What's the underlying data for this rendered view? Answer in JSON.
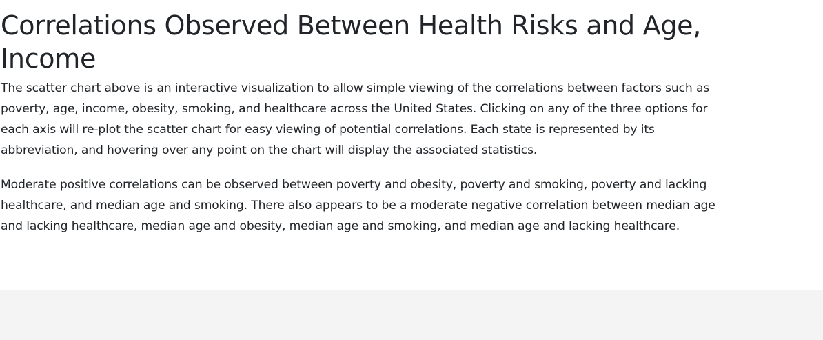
{
  "article": {
    "title": "Correlations Observed Between Health Risks and Age, Income",
    "paragraphs": [
      "The scatter chart above is an interactive visualization to allow simple viewing of the correlations between factors such as poverty, age, income, obesity, smoking, and healthcare across the United States. Clicking on any of the three options for each axis will re-plot the scatter chart for easy viewing of potential correlations. Each state is represented by its abbreviation, and hovering over any point on the chart will display the associated statistics.",
      "Moderate positive correlations can be observed between poverty and obesity, poverty and smoking, poverty and lacking healthcare, and median age and smoking. There also appears to be a moderate negative correlation between median age and lacking healthcare, median age and obesity, median age and smoking, and median age and lacking healthcare."
    ]
  },
  "colors": {
    "text": "#212529",
    "background": "#ffffff",
    "footer_background": "#f4f4f4"
  }
}
